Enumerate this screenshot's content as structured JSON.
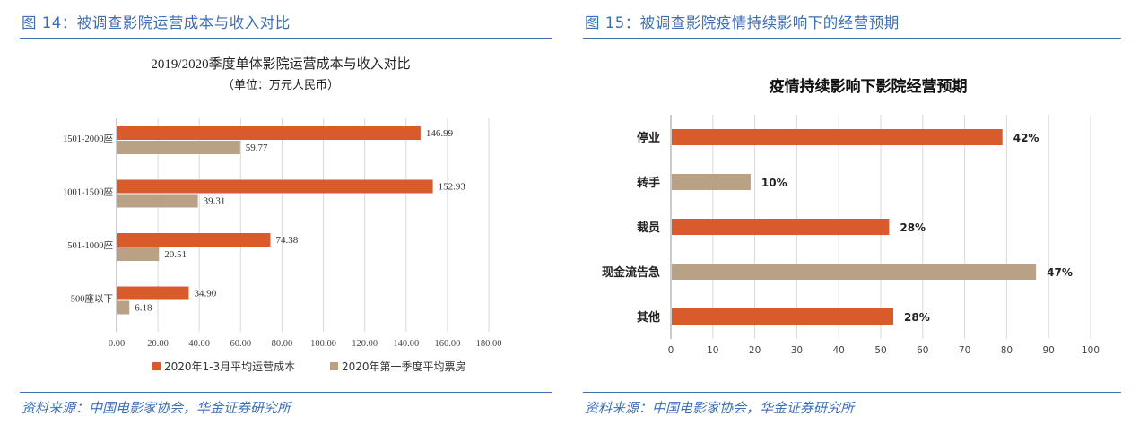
{
  "figures": [
    {
      "heading": "图 14：被调查影院运营成本与收入对比",
      "source": "资料来源：中国电影家协会，华金证券研究所"
    },
    {
      "heading": "图 15：被调查影院疫情持续影响下的经营预期",
      "source": "资料来源：中国电影家协会，华金证券研究所"
    }
  ],
  "colors": {
    "heading": "#3c6fb4",
    "orange": "#d95b2c",
    "tan": "#b8a184",
    "grid": "#d9d9d9"
  },
  "chart_data": [
    {
      "type": "bar",
      "orientation": "horizontal",
      "title": "2019/2020季度单体影院运营成本与收入对比",
      "subtitle": "（单位：万元人民币）",
      "categories": [
        "1501-2000座",
        "1001-1500座",
        "501-1000座",
        "500座以下"
      ],
      "series": [
        {
          "name": "2020年1-3月平均运营成本",
          "color": "#d95b2c",
          "values": [
            146.99,
            152.93,
            74.38,
            34.9
          ],
          "labels": [
            "146.99",
            "152.93",
            "74.38",
            "34.90"
          ]
        },
        {
          "name": "2020年第一季度平均票房",
          "color": "#b8a184",
          "values": [
            59.77,
            39.31,
            20.51,
            6.18
          ],
          "labels": [
            "59.77",
            "39.31",
            "20.51",
            "6.18"
          ]
        }
      ],
      "xlim": [
        0,
        180
      ],
      "xticks": [
        0,
        20,
        40,
        60,
        80,
        100,
        120,
        140,
        160,
        180
      ],
      "xtick_labels": [
        "0.00",
        "20.00",
        "40.00",
        "60.00",
        "80.00",
        "100.00",
        "120.00",
        "140.00",
        "160.00",
        "180.00"
      ],
      "grid": true,
      "legend": "bottom"
    },
    {
      "type": "bar",
      "orientation": "horizontal",
      "title": "疫情持续影响下影院经营预期",
      "categories": [
        "停业",
        "转手",
        "裁员",
        "现金流告急",
        "其他"
      ],
      "values": [
        79,
        19,
        52,
        87,
        53
      ],
      "labels": [
        "42%",
        "10%",
        "28%",
        "47%",
        "28%"
      ],
      "colors": [
        "#d95b2c",
        "#b8a184",
        "#d95b2c",
        "#b8a184",
        "#d95b2c"
      ],
      "xlim": [
        0,
        100
      ],
      "xticks": [
        0,
        10,
        20,
        30,
        40,
        50,
        60,
        70,
        80,
        90,
        100
      ],
      "xtick_labels": [
        "0",
        "10",
        "20",
        "30",
        "40",
        "50",
        "60",
        "70",
        "80",
        "90",
        "100"
      ],
      "grid": true
    }
  ]
}
